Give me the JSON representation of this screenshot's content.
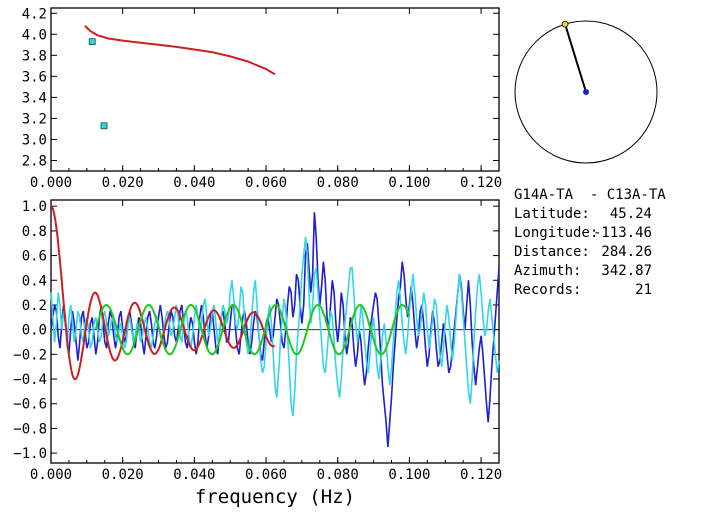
{
  "chart_data": [
    {
      "type": "scatter",
      "xlim": [
        0.0,
        0.125
      ],
      "ylim": [
        2.7,
        4.25
      ],
      "x_ticks": [
        "0.000",
        "0.020",
        "0.040",
        "0.060",
        "0.080",
        "0.100",
        "0.120"
      ],
      "y_ticks": [
        "2.8",
        "3.0",
        "3.2",
        "3.4",
        "3.6",
        "3.8",
        "4.0",
        "4.2"
      ],
      "x_tick_values": [
        0.0,
        0.02,
        0.04,
        0.06,
        0.08,
        0.1,
        0.12
      ],
      "y_tick_values": [
        2.8,
        3.0,
        3.2,
        3.4,
        3.6,
        3.8,
        4.0,
        4.2
      ],
      "series": [
        {
          "color": "#cc1f1f",
          "style": "line",
          "x": [
            0.0095,
            0.011,
            0.013,
            0.016,
            0.02,
            0.025,
            0.03,
            0.035,
            0.04,
            0.045,
            0.05,
            0.055,
            0.06,
            0.0625
          ],
          "y": [
            4.08,
            4.03,
            3.99,
            3.96,
            3.94,
            3.92,
            3.9,
            3.88,
            3.855,
            3.83,
            3.79,
            3.74,
            3.67,
            3.62
          ]
        },
        {
          "color": "#33d6d6",
          "style": "markers",
          "x": [
            0.0115,
            0.0148
          ],
          "y": [
            3.93,
            3.13
          ]
        }
      ]
    },
    {
      "type": "line",
      "xlim": [
        0.0,
        0.125
      ],
      "ylim": [
        -1.08,
        1.05
      ],
      "x_ticks": [
        "0.000",
        "0.020",
        "0.040",
        "0.060",
        "0.080",
        "0.100",
        "0.120"
      ],
      "y_ticks": [
        "1.0",
        "0.8",
        "0.6",
        "0.4",
        "0.2",
        "0.0",
        "−0.2",
        "−0.4",
        "−0.6",
        "−0.8",
        "−1.0"
      ],
      "x_tick_values": [
        0.0,
        0.02,
        0.04,
        0.06,
        0.08,
        0.1,
        0.12
      ],
      "y_tick_values": [
        1.0,
        0.8,
        0.6,
        0.4,
        0.2,
        0.0,
        -0.2,
        -0.4,
        -0.6,
        -0.8,
        -1.0
      ],
      "xlabel": "frequency (Hz)",
      "series": [
        {
          "color": "#1f1fcc",
          "x0": 0.0,
          "dx": 0.0005,
          "values": [
            0.0,
            0.1,
            0.2,
            0.15,
            -0.05,
            -0.15,
            0.05,
            0.2,
            0.1,
            -0.1,
            -0.2,
            0.0,
            0.15,
            0.05,
            -0.1,
            -0.25,
            -0.1,
            0.1,
            0.15,
            0.0,
            -0.15,
            -0.1,
            0.05,
            0.1,
            -0.05,
            -0.2,
            -0.1,
            0.1,
            0.2,
            0.05,
            -0.1,
            -0.15,
            0.05,
            0.15,
            0.1,
            -0.05,
            -0.15,
            -0.05,
            0.1,
            0.15,
            0.0,
            -0.1,
            -0.05,
            0.1,
            0.15,
            0.05,
            -0.1,
            -0.15,
            0.0,
            0.1,
            0.05,
            -0.1,
            -0.2,
            -0.05,
            0.1,
            0.15,
            0.05,
            -0.1,
            -0.15,
            -0.05,
            0.1,
            0.2,
            0.1,
            -0.05,
            -0.15,
            -0.1,
            0.05,
            0.15,
            0.1,
            -0.05,
            -0.1,
            0.0,
            0.15,
            0.2,
            0.05,
            -0.1,
            -0.15,
            0.0,
            0.1,
            0.05,
            -0.1,
            -0.2,
            -0.1,
            0.1,
            0.2,
            0.1,
            -0.05,
            -0.15,
            -0.05,
            0.1,
            0.15,
            0.0,
            -0.15,
            -0.2,
            -0.05,
            0.1,
            0.15,
            0.05,
            -0.1,
            -0.1,
            0.05,
            0.2,
            0.2,
            0.0,
            -0.15,
            -0.2,
            -0.05,
            0.1,
            0.15,
            0.05,
            -0.1,
            -0.2,
            -0.1,
            0.05,
            0.15,
            0.1,
            -0.05,
            -0.2,
            -0.25,
            -0.1,
            0.05,
            0.1,
            0.0,
            -0.1,
            -0.05,
            0.1,
            0.25,
            0.2,
            0.05,
            -0.1,
            -0.15,
            0.0,
            0.2,
            0.35,
            0.3,
            0.1,
            0.2,
            0.45,
            0.4,
            0.2,
            0.05,
            0.2,
            0.6,
            0.7,
            0.5,
            0.3,
            0.45,
            0.95,
            0.75,
            0.4,
            0.2,
            0.35,
            0.55,
            0.4,
            0.1,
            0.0,
            0.2,
            0.4,
            0.3,
            0.05,
            -0.1,
            0.05,
            0.3,
            0.2,
            -0.05,
            -0.2,
            -0.1,
            0.1,
            0.05,
            -0.15,
            -0.3,
            -0.2,
            0.0,
            -0.1,
            -0.3,
            -0.45,
            -0.35,
            -0.15,
            0.0,
            0.1,
            0.2,
            0.3,
            0.25,
            0.05,
            -0.2,
            -0.45,
            -0.6,
            -0.75,
            -0.95,
            -0.75,
            -0.55,
            -0.3,
            -0.1,
            0.1,
            0.25,
            0.35,
            0.55,
            0.45,
            0.25,
            0.1,
            0.2,
            0.35,
            0.2,
            0.0,
            -0.15,
            -0.05,
            0.15,
            0.2,
            0.05,
            -0.15,
            -0.3,
            -0.2,
            0.0,
            0.15,
            0.05,
            -0.15,
            -0.3,
            -0.25,
            -0.1,
            0.05,
            -0.05,
            -0.2,
            -0.35,
            -0.3,
            -0.15,
            0.0,
            0.15,
            0.3,
            0.45,
            0.35,
            0.15,
            0.0,
            0.2,
            0.4,
            0.2,
            -0.1,
            -0.3,
            -0.45,
            -0.3,
            -0.15,
            -0.05,
            -0.2,
            -0.4,
            -0.6,
            -0.75,
            -0.55,
            -0.3,
            -0.1,
            0.1,
            0.3,
            0.5,
            0.6,
            0.45,
            0.25,
            0.5,
            0.8,
            0.6
          ]
        },
        {
          "color": "#33d6e6",
          "x0": 0.0,
          "dx": 0.0005,
          "values": [
            0.3,
            0.1,
            -0.1,
            0.05,
            0.3,
            0.2,
            0.0,
            0.15,
            0.05,
            -0.15,
            0.1,
            0.2,
            0.05,
            -0.1,
            0.0,
            0.15,
            0.1,
            -0.05,
            -0.1,
            0.05,
            0.1,
            0.0,
            -0.15,
            -0.1,
            0.05,
            0.1,
            0.0,
            -0.1,
            -0.05,
            0.1,
            0.15,
            0.05,
            -0.05,
            0.0,
            0.1,
            0.05,
            -0.05,
            -0.1,
            0.0,
            0.05,
            -0.05,
            -0.15,
            -0.1,
            0.05,
            0.1,
            0.0,
            -0.1,
            -0.05,
            0.05,
            0.0,
            -0.1,
            -0.05,
            0.05,
            0.1,
            0.0,
            -0.1,
            -0.15,
            -0.05,
            0.05,
            0.1,
            0.05,
            -0.05,
            -0.1,
            0.0,
            0.1,
            0.15,
            0.05,
            -0.05,
            0.0,
            0.1,
            0.2,
            0.1,
            -0.05,
            -0.1,
            0.05,
            0.15,
            0.1,
            -0.05,
            -0.15,
            -0.05,
            0.1,
            0.2,
            0.1,
            0.0,
            0.05,
            0.2,
            0.25,
            0.1,
            -0.05,
            0.0,
            0.15,
            0.2,
            0.05,
            -0.1,
            -0.05,
            0.1,
            0.2,
            0.15,
            0.05,
            0.1,
            0.3,
            0.4,
            0.25,
            0.05,
            0.0,
            0.15,
            0.35,
            0.3,
            0.1,
            -0.1,
            -0.2,
            -0.1,
            0.1,
            0.3,
            0.4,
            0.2,
            -0.05,
            -0.25,
            -0.35,
            -0.3,
            -0.1,
            0.1,
            0.2,
            0.05,
            -0.2,
            -0.45,
            -0.55,
            -0.35,
            -0.1,
            0.1,
            0.25,
            0.15,
            -0.05,
            -0.3,
            -0.6,
            -0.7,
            -0.5,
            -0.2,
            0.0,
            0.2,
            0.45,
            0.6,
            0.75,
            0.6,
            0.3,
            0.05,
            0.2,
            0.45,
            0.5,
            0.3,
            0.1,
            -0.1,
            -0.3,
            -0.35,
            -0.2,
            0.0,
            0.15,
            0.1,
            -0.1,
            -0.3,
            -0.45,
            -0.55,
            -0.4,
            -0.15,
            0.05,
            0.2,
            0.35,
            0.5,
            0.5,
            0.3,
            0.05,
            -0.1,
            0.0,
            0.2,
            0.1,
            -0.1,
            -0.25,
            -0.35,
            -0.2,
            0.0,
            0.1,
            -0.1,
            -0.3,
            -0.4,
            -0.25,
            -0.05,
            0.05,
            -0.1,
            -0.3,
            -0.45,
            -0.3,
            -0.1,
            0.1,
            0.3,
            0.4,
            0.25,
            0.05,
            -0.1,
            -0.2,
            -0.05,
            0.15,
            0.3,
            0.45,
            0.3,
            0.1,
            -0.05,
            0.0,
            0.15,
            0.3,
            0.2,
            0.0,
            -0.15,
            -0.05,
            0.1,
            0.25,
            0.2,
            0.0,
            -0.2,
            -0.3,
            -0.15,
            0.05,
            0.2,
            0.1,
            -0.1,
            -0.25,
            -0.1,
            0.1,
            0.3,
            0.45,
            0.3,
            0.1,
            -0.1,
            -0.3,
            -0.5,
            -0.6,
            -0.4,
            -0.1,
            0.15,
            0.35,
            0.45,
            0.3,
            0.1,
            -0.05,
            0.0,
            0.15,
            0.25,
            0.1,
            -0.05,
            -0.2,
            -0.35,
            -0.25,
            -0.05,
            0.2,
            0.4,
            0.3,
            0.1,
            -0.15,
            -0.35,
            -0.2,
            0.05,
            0.3,
            0.55,
            0.45,
            0.2
          ]
        },
        {
          "color": "#cc1f1f",
          "x0": 0.0,
          "x1": 0.0625,
          "kind": "bessel",
          "amplitude": 1.0,
          "wave_k": 570,
          "points_step": 0.0003
        },
        {
          "color": "#22c822",
          "x0": 0.0125,
          "x1": 0.1,
          "kind": "cosine",
          "amplitude": 0.2,
          "period": 0.0118,
          "phase": 0.0
        }
      ]
    }
  ],
  "station_pair": "G14A-TA  - C13A-TA",
  "info_rows": [
    {
      "label": "Latitude:",
      "value": "45.24"
    },
    {
      "label": "Longitude:",
      "value": "-113.46"
    },
    {
      "label": "Distance:",
      "value": "284.26"
    },
    {
      "label": "Azimuth:",
      "value": "342.87"
    },
    {
      "label": "Records:",
      "value": "21"
    }
  ],
  "compass": {
    "azimuth_deg": 342.87,
    "needle_color": "#000000",
    "center_color": "#1f1fcc",
    "tip_color": "#e6d23a"
  },
  "colors": {
    "axis": "#000000",
    "zero_line": "#1f1fcc",
    "background": "#ffffff"
  }
}
